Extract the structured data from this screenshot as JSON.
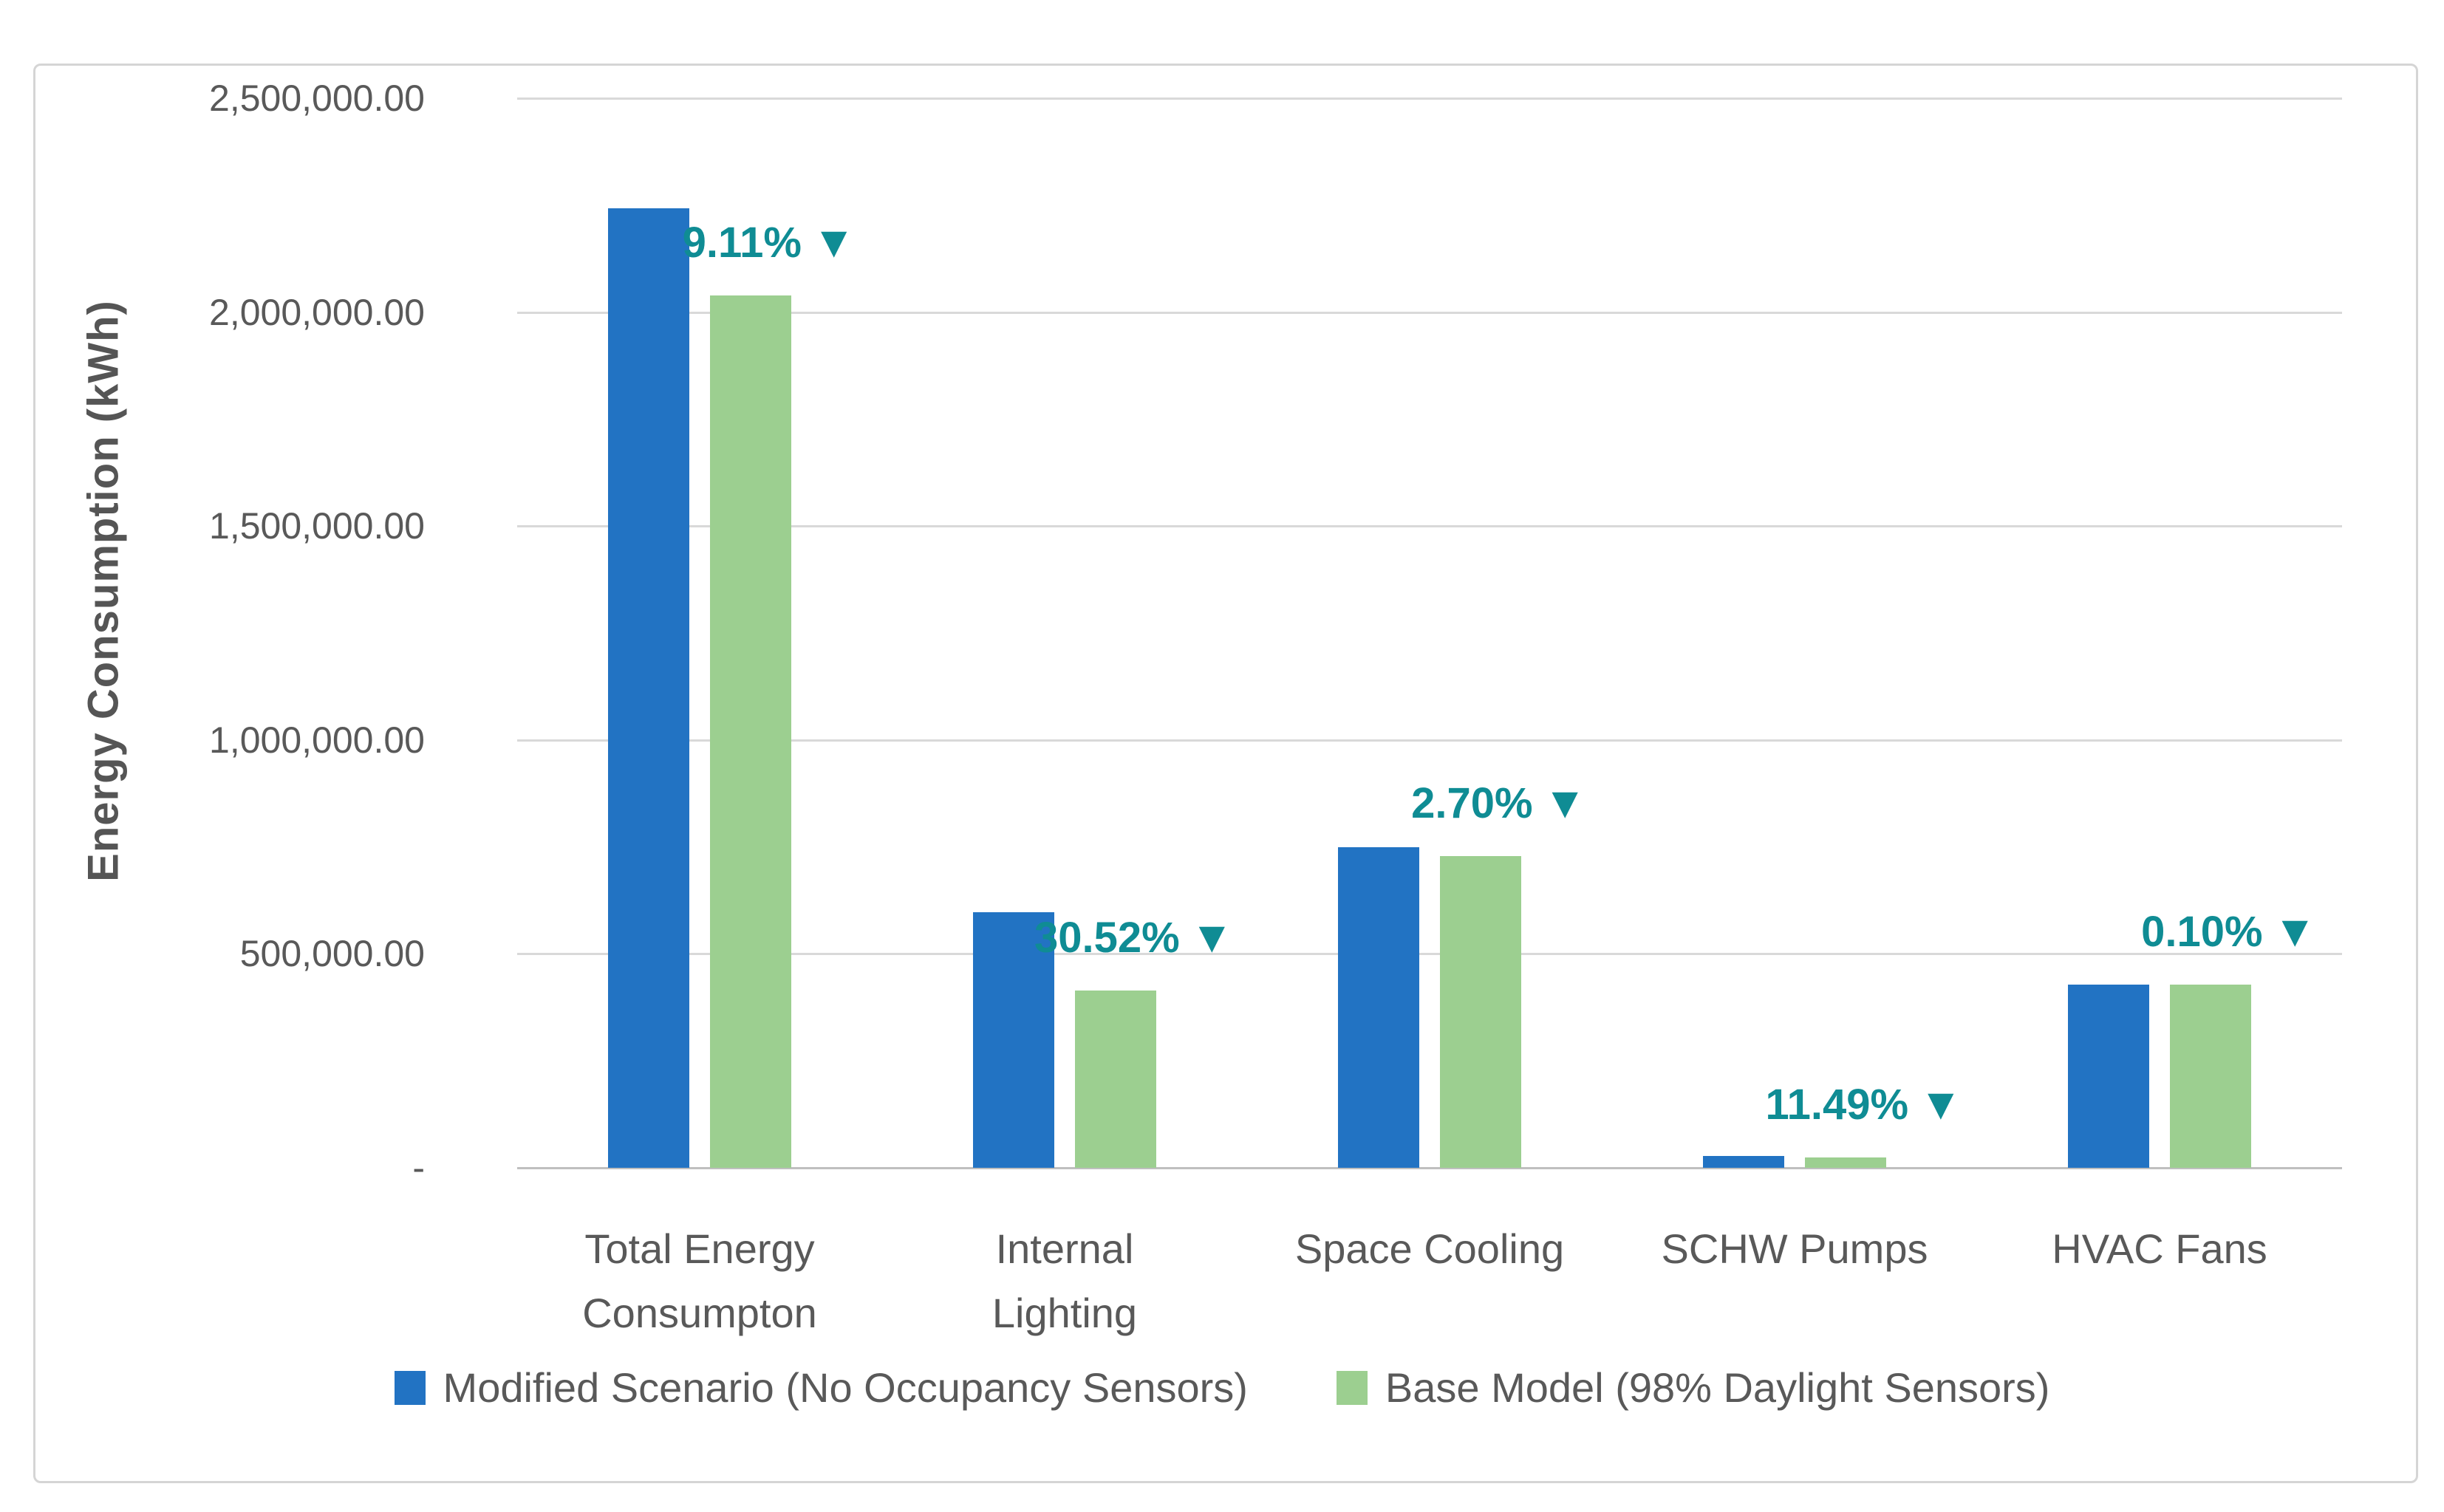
{
  "chart_data": {
    "type": "bar",
    "title": "",
    "ylabel": "Energy Consumption (kWh)",
    "categories": [
      "Total Energy\nConsumpton",
      "Internal\nLighting",
      "Space Cooling",
      "SCHW Pumps",
      "HVAC Fans"
    ],
    "series": [
      {
        "name": "Modified Scenario (No Occupancy Sensors)",
        "color": "#2273C3",
        "values": [
          2243000,
          597500,
          749500,
          27600,
          428300
        ]
      },
      {
        "name": "Base Model (98% Daylight Sensors)",
        "color": "#9CCF90",
        "values": [
          2039000,
          415100,
          729300,
          24400,
          427900
        ]
      }
    ],
    "annotations": [
      {
        "text": "9.11%",
        "icon": "▼"
      },
      {
        "text": "30.52%",
        "icon": "▼"
      },
      {
        "text": "2.70%",
        "icon": "▼"
      },
      {
        "text": "11.49%",
        "icon": "▼"
      },
      {
        "text": "0.10%",
        "icon": "▼"
      }
    ],
    "ylim": [
      0,
      2500000
    ],
    "y_tick_labels": [
      "2,500,000.00",
      "2,000,000.00",
      "1,500,000.00",
      "1,000,000.00",
      "500,000.00",
      "-"
    ],
    "grid": true,
    "legend_position": "bottom",
    "colors": {
      "annotation": "#0F8C94",
      "text": "#595959",
      "gridline": "#D9D9D9",
      "axis_line": "#BFBFBF"
    }
  }
}
